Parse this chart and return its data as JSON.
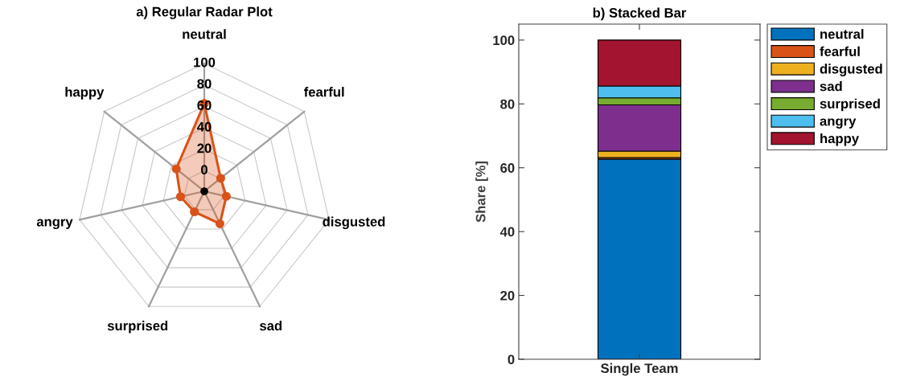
{
  "chart_data": [
    {
      "type": "radar",
      "title": "a) Regular Radar Plot",
      "categories": [
        "neutral",
        "fearful",
        "disgusted",
        "sad",
        "surprised",
        "angry",
        "happy"
      ],
      "ylim": [
        -19,
        100
      ],
      "yticks": [
        0,
        20,
        40,
        60,
        80,
        100
      ],
      "marker": "circle",
      "series": [
        {
          "color": "#d95319",
          "values": [
            62.7,
            0.5,
            2.0,
            14.5,
            2.2,
            3.7,
            14.4
          ]
        }
      ]
    },
    {
      "type": "bar",
      "title": "b) Stacked Bar",
      "ylabel": "Share [%]",
      "categories": [
        "Single Team"
      ],
      "stacked": true,
      "ylim": [
        0,
        105
      ],
      "yticks": [
        0,
        20,
        40,
        60,
        80,
        100
      ],
      "legend": "right",
      "grid": false,
      "series": [
        {
          "name": "neutral",
          "color": "#0072bd",
          "values": [
            62.7
          ]
        },
        {
          "name": "fearful",
          "color": "#d95319",
          "values": [
            0.5
          ]
        },
        {
          "name": "disgusted",
          "color": "#edb120",
          "values": [
            2.0
          ]
        },
        {
          "name": "sad",
          "color": "#7e2f8e",
          "values": [
            14.5
          ]
        },
        {
          "name": "surprised",
          "color": "#77ac30",
          "values": [
            2.2
          ]
        },
        {
          "name": "angry",
          "color": "#4dbeee",
          "values": [
            3.7
          ]
        },
        {
          "name": "happy",
          "color": "#a2142f",
          "values": [
            14.4
          ]
        }
      ]
    }
  ]
}
